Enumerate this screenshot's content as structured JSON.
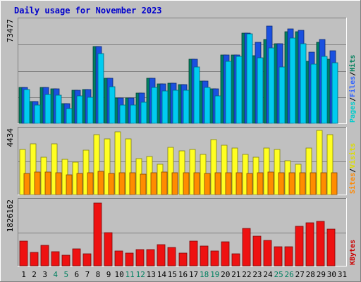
{
  "chart_data": {
    "type": "bar",
    "title": "Daily usage for November 2023",
    "categories": [
      "1",
      "2",
      "3",
      "4",
      "5",
      "6",
      "7",
      "8",
      "9",
      "10",
      "11",
      "12",
      "13",
      "14",
      "15",
      "16",
      "17",
      "18",
      "19",
      "20",
      "21",
      "22",
      "23",
      "24",
      "25",
      "26",
      "27",
      "28",
      "29",
      "30",
      "31"
    ],
    "weekend_days": [
      "4",
      "5",
      "11",
      "12",
      "18",
      "19",
      "25",
      "26"
    ],
    "panels": [
      {
        "id": "hits",
        "max_label": "73477",
        "ylim": [
          0,
          73477
        ],
        "legend": [
          "Pages",
          "/",
          "Files",
          "/",
          "Hits"
        ],
        "legend_colors": [
          "#00cccc",
          "#000000",
          "#3366ff",
          "#000000",
          "#00805c"
        ],
        "series": [
          {
            "name": "Hits",
            "color": "#008060",
            "values": [
              26000,
              16000,
              26000,
              25000,
              14500,
              24000,
              24500,
              56000,
              33000,
              18500,
              18500,
              22000,
              33000,
              29000,
              29500,
              28500,
              47000,
              31000,
              25000,
              50000,
              50000,
              66000,
              49500,
              61000,
              58000,
              67000,
              67000,
              45000,
              59000,
              47000,
              0
            ]
          },
          {
            "name": "Files",
            "color": "#1a50e0",
            "values": [
              26000,
              16000,
              26000,
              25000,
              14500,
              24000,
              24500,
              56000,
              33000,
              18500,
              18500,
              22000,
              33000,
              29000,
              29500,
              28500,
              47000,
              31000,
              25000,
              50000,
              50000,
              66000,
              59000,
              71000,
              58000,
              69000,
              68000,
              52000,
              61000,
              53000,
              0
            ]
          },
          {
            "name": "Pages",
            "color": "#00ccf0",
            "values": [
              24500,
              13500,
              21000,
              20500,
              11000,
              20000,
              19000,
              51000,
              26500,
              13500,
              13500,
              15500,
              26000,
              23500,
              24000,
              24000,
              41000,
              26000,
              20000,
              45000,
              49000,
              65000,
              48000,
              55000,
              41000,
              62000,
              58000,
              43000,
              49000,
              44000,
              0
            ]
          }
        ]
      },
      {
        "id": "visits",
        "max_label": "4434",
        "ylim": [
          0,
          4434
        ],
        "legend": [
          "Sites",
          "/",
          "Visits"
        ],
        "legend_colors": [
          "#ff8800",
          "#000000",
          "#dddd00"
        ],
        "series": [
          {
            "name": "Visits",
            "color": "#ffff22",
            "values": [
              3200,
              3600,
              2650,
              3600,
              2500,
              2300,
              3150,
              4250,
              3950,
              4450,
              3950,
              2550,
              2700,
              2150,
              3350,
              3100,
              3200,
              2850,
              3900,
              3500,
              3300,
              2850,
              2650,
              3300,
              3200,
              2400,
              2150,
              3300,
              4550,
              4250,
              0
            ]
          },
          {
            "name": "Sites",
            "color": "#ff8c00",
            "values": [
              1500,
              1600,
              1600,
              1550,
              1400,
              1500,
              1550,
              1650,
              1500,
              1550,
              1550,
              1450,
              1550,
              1600,
              1550,
              1550,
              1550,
              1500,
              1550,
              1550,
              1550,
              1500,
              1550,
              1600,
              1550,
              1550,
              1550,
              1550,
              1550,
              1550,
              0
            ]
          }
        ]
      },
      {
        "id": "kbytes",
        "max_label": "1826162",
        "ylim": [
          0,
          1826162
        ],
        "legend": [
          "KBytes"
        ],
        "legend_colors": [
          "#cc0000"
        ],
        "series": [
          {
            "name": "KBytes",
            "color": "#ee1111",
            "values": [
              720000,
              400000,
              600000,
              410000,
              310000,
              500000,
              350000,
              1826162,
              960000,
              440000,
              370000,
              470000,
              480000,
              620000,
              540000,
              360000,
              710000,
              570000,
              440000,
              690000,
              350000,
              1080000,
              870000,
              730000,
              560000,
              550000,
              1140000,
              1260000,
              1290000,
              1060000,
              0
            ]
          }
        ]
      }
    ]
  }
}
